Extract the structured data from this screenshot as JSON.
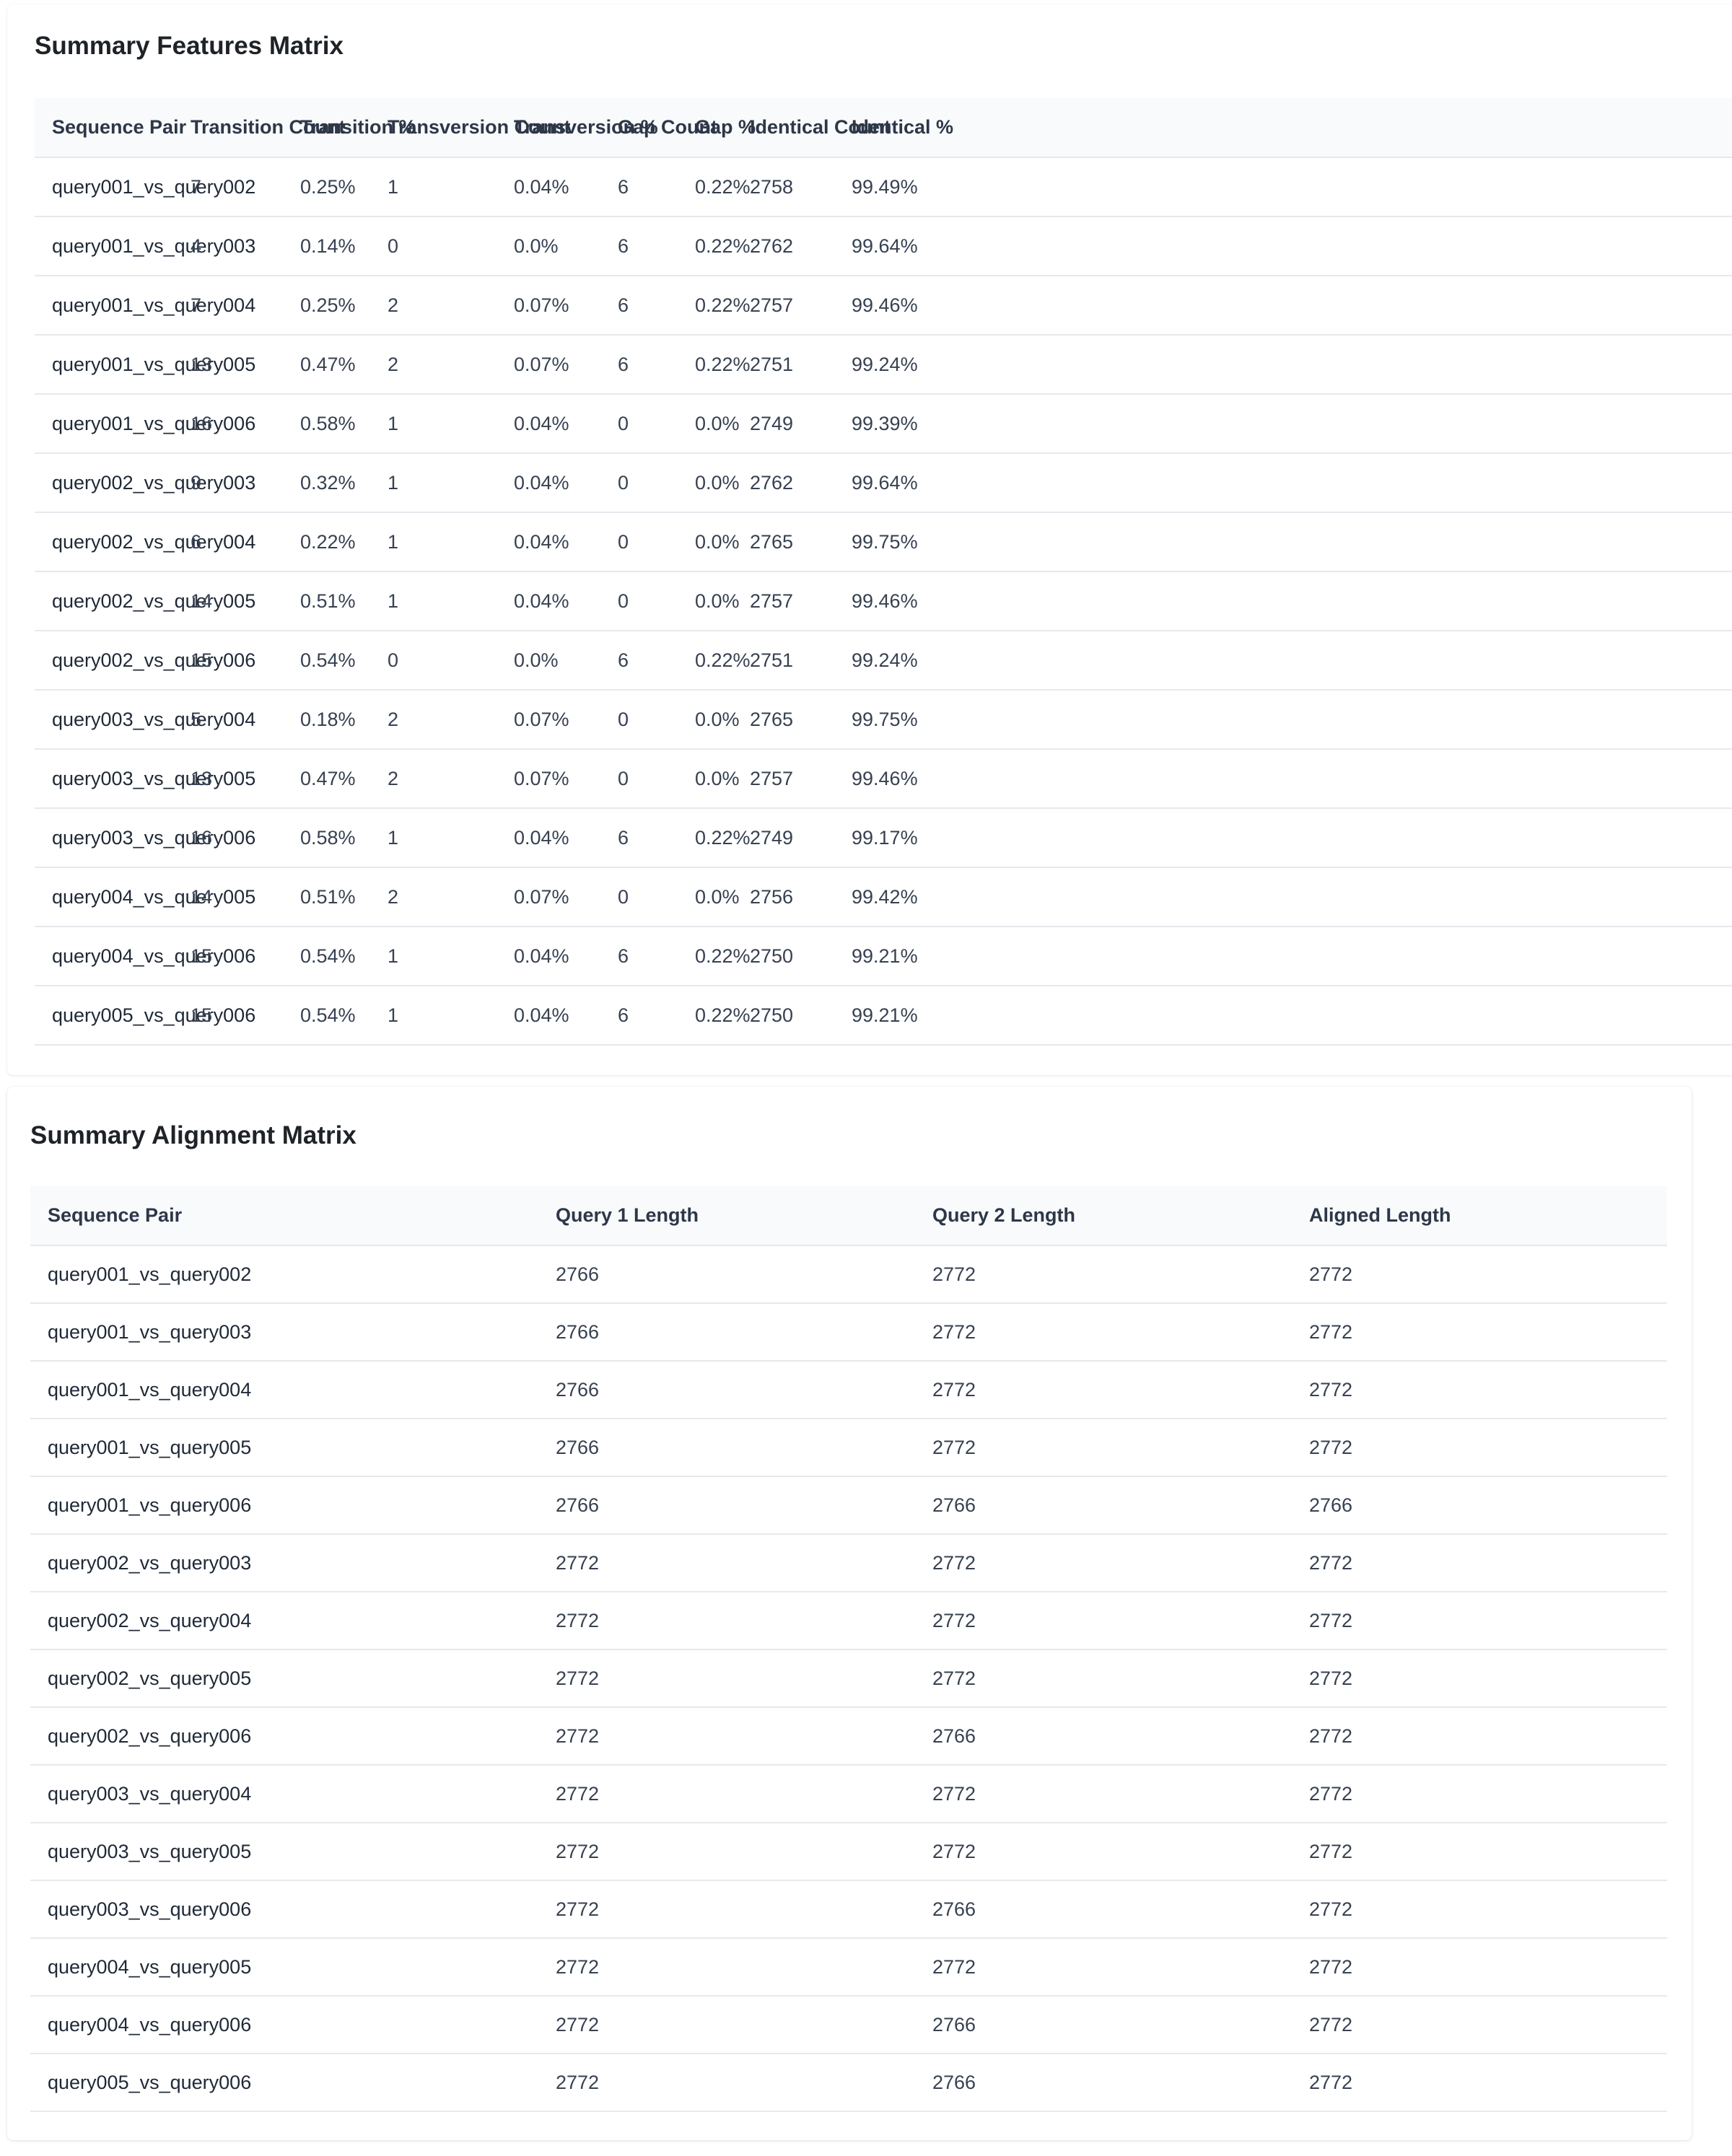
{
  "features_matrix": {
    "title": "Summary Features Matrix",
    "columns": [
      "Sequence Pair",
      "Transition Count",
      "Transition %",
      "Transversion Count",
      "Transversion %",
      "Gap Count",
      "Gap %",
      "Identical Count",
      "Identical %"
    ],
    "rows": [
      [
        "query001_vs_query002",
        "7",
        "0.25%",
        "1",
        "0.04%",
        "6",
        "0.22%",
        "2758",
        "99.49%"
      ],
      [
        "query001_vs_query003",
        "4",
        "0.14%",
        "0",
        "0.0%",
        "6",
        "0.22%",
        "2762",
        "99.64%"
      ],
      [
        "query001_vs_query004",
        "7",
        "0.25%",
        "2",
        "0.07%",
        "6",
        "0.22%",
        "2757",
        "99.46%"
      ],
      [
        "query001_vs_query005",
        "13",
        "0.47%",
        "2",
        "0.07%",
        "6",
        "0.22%",
        "2751",
        "99.24%"
      ],
      [
        "query001_vs_query006",
        "16",
        "0.58%",
        "1",
        "0.04%",
        "0",
        "0.0%",
        "2749",
        "99.39%"
      ],
      [
        "query002_vs_query003",
        "9",
        "0.32%",
        "1",
        "0.04%",
        "0",
        "0.0%",
        "2762",
        "99.64%"
      ],
      [
        "query002_vs_query004",
        "6",
        "0.22%",
        "1",
        "0.04%",
        "0",
        "0.0%",
        "2765",
        "99.75%"
      ],
      [
        "query002_vs_query005",
        "14",
        "0.51%",
        "1",
        "0.04%",
        "0",
        "0.0%",
        "2757",
        "99.46%"
      ],
      [
        "query002_vs_query006",
        "15",
        "0.54%",
        "0",
        "0.0%",
        "6",
        "0.22%",
        "2751",
        "99.24%"
      ],
      [
        "query003_vs_query004",
        "5",
        "0.18%",
        "2",
        "0.07%",
        "0",
        "0.0%",
        "2765",
        "99.75%"
      ],
      [
        "query003_vs_query005",
        "13",
        "0.47%",
        "2",
        "0.07%",
        "0",
        "0.0%",
        "2757",
        "99.46%"
      ],
      [
        "query003_vs_query006",
        "16",
        "0.58%",
        "1",
        "0.04%",
        "6",
        "0.22%",
        "2749",
        "99.17%"
      ],
      [
        "query004_vs_query005",
        "14",
        "0.51%",
        "2",
        "0.07%",
        "0",
        "0.0%",
        "2756",
        "99.42%"
      ],
      [
        "query004_vs_query006",
        "15",
        "0.54%",
        "1",
        "0.04%",
        "6",
        "0.22%",
        "2750",
        "99.21%"
      ],
      [
        "query005_vs_query006",
        "15",
        "0.54%",
        "1",
        "0.04%",
        "6",
        "0.22%",
        "2750",
        "99.21%"
      ]
    ]
  },
  "alignment_matrix": {
    "title": "Summary Alignment Matrix",
    "columns": [
      "Sequence Pair",
      "Query 1 Length",
      "Query 2 Length",
      "Aligned Length"
    ],
    "rows": [
      [
        "query001_vs_query002",
        "2766",
        "2772",
        "2772"
      ],
      [
        "query001_vs_query003",
        "2766",
        "2772",
        "2772"
      ],
      [
        "query001_vs_query004",
        "2766",
        "2772",
        "2772"
      ],
      [
        "query001_vs_query005",
        "2766",
        "2772",
        "2772"
      ],
      [
        "query001_vs_query006",
        "2766",
        "2766",
        "2766"
      ],
      [
        "query002_vs_query003",
        "2772",
        "2772",
        "2772"
      ],
      [
        "query002_vs_query004",
        "2772",
        "2772",
        "2772"
      ],
      [
        "query002_vs_query005",
        "2772",
        "2772",
        "2772"
      ],
      [
        "query002_vs_query006",
        "2772",
        "2766",
        "2772"
      ],
      [
        "query003_vs_query004",
        "2772",
        "2772",
        "2772"
      ],
      [
        "query003_vs_query005",
        "2772",
        "2772",
        "2772"
      ],
      [
        "query003_vs_query006",
        "2772",
        "2766",
        "2772"
      ],
      [
        "query004_vs_query005",
        "2772",
        "2772",
        "2772"
      ],
      [
        "query004_vs_query006",
        "2772",
        "2766",
        "2772"
      ],
      [
        "query005_vs_query006",
        "2772",
        "2766",
        "2772"
      ]
    ]
  }
}
